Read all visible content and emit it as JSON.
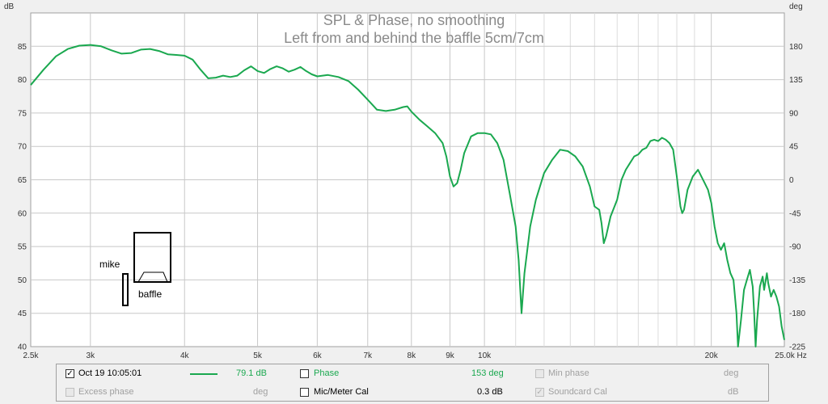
{
  "chart_data": {
    "type": "line",
    "title": "SPL & Phase, no smoothing",
    "subtitle": "Left from and behind the baffle 5cm/7cm",
    "ylabel": "dB",
    "ylabel_right": "deg",
    "xscale": "log",
    "xlim": [
      2500,
      25000
    ],
    "ylim": [
      40,
      90
    ],
    "ylim_right": [
      -225,
      225
    ],
    "x_ticks": [
      {
        "v": 2500,
        "label": "2.5k"
      },
      {
        "v": 3000,
        "label": "3k"
      },
      {
        "v": 4000,
        "label": "4k"
      },
      {
        "v": 5000,
        "label": "5k"
      },
      {
        "v": 6000,
        "label": "6k"
      },
      {
        "v": 7000,
        "label": "7k"
      },
      {
        "v": 8000,
        "label": "8k"
      },
      {
        "v": 9000,
        "label": "9k"
      },
      {
        "v": 10000,
        "label": "10k"
      },
      {
        "v": 20000,
        "label": "20k"
      },
      {
        "v": 25000,
        "label": "25.0k Hz"
      }
    ],
    "x_minor_gridlines": [
      11000,
      12000,
      13000,
      14000,
      15000,
      16000,
      17000,
      18000,
      19000
    ],
    "y_ticks": [
      40,
      45,
      50,
      55,
      60,
      65,
      70,
      75,
      80,
      85
    ],
    "y_ticks_right": [
      -225,
      -180,
      -135,
      -90,
      -45,
      0,
      45,
      90,
      135,
      180
    ],
    "grid": true,
    "series": [
      {
        "color": "#1aa84f",
        "points": [
          [
            2500,
            79.2
          ],
          [
            2600,
            81.5
          ],
          [
            2700,
            83.5
          ],
          [
            2800,
            84.6
          ],
          [
            2900,
            85.1
          ],
          [
            3000,
            85.2
          ],
          [
            3100,
            85.0
          ],
          [
            3200,
            84.4
          ],
          [
            3300,
            83.9
          ],
          [
            3400,
            84.0
          ],
          [
            3500,
            84.5
          ],
          [
            3600,
            84.6
          ],
          [
            3700,
            84.3
          ],
          [
            3800,
            83.8
          ],
          [
            3900,
            83.7
          ],
          [
            4000,
            83.6
          ],
          [
            4100,
            83.0
          ],
          [
            4200,
            81.5
          ],
          [
            4300,
            80.2
          ],
          [
            4400,
            80.3
          ],
          [
            4500,
            80.6
          ],
          [
            4600,
            80.4
          ],
          [
            4700,
            80.6
          ],
          [
            4800,
            81.4
          ],
          [
            4900,
            82.0
          ],
          [
            5000,
            81.3
          ],
          [
            5100,
            81.0
          ],
          [
            5200,
            81.6
          ],
          [
            5300,
            82.0
          ],
          [
            5400,
            81.7
          ],
          [
            5500,
            81.2
          ],
          [
            5600,
            81.5
          ],
          [
            5700,
            81.9
          ],
          [
            5800,
            81.3
          ],
          [
            5900,
            80.8
          ],
          [
            6000,
            80.5
          ],
          [
            6200,
            80.7
          ],
          [
            6400,
            80.4
          ],
          [
            6600,
            79.8
          ],
          [
            6800,
            78.5
          ],
          [
            7000,
            77.0
          ],
          [
            7200,
            75.5
          ],
          [
            7400,
            75.3
          ],
          [
            7600,
            75.5
          ],
          [
            7800,
            75.9
          ],
          [
            7900,
            76.0
          ],
          [
            8000,
            75.2
          ],
          [
            8200,
            74.0
          ],
          [
            8400,
            73.0
          ],
          [
            8600,
            72.0
          ],
          [
            8800,
            70.5
          ],
          [
            8900,
            68.5
          ],
          [
            9000,
            65.5
          ],
          [
            9100,
            64.0
          ],
          [
            9200,
            64.5
          ],
          [
            9300,
            66.5
          ],
          [
            9400,
            69.0
          ],
          [
            9600,
            71.5
          ],
          [
            9800,
            72.0
          ],
          [
            10000,
            72.0
          ],
          [
            10200,
            71.8
          ],
          [
            10400,
            70.5
          ],
          [
            10600,
            68.0
          ],
          [
            10800,
            63.0
          ],
          [
            11000,
            58.0
          ],
          [
            11100,
            53.0
          ],
          [
            11200,
            45.0
          ],
          [
            11300,
            51.0
          ],
          [
            11500,
            58.0
          ],
          [
            11700,
            62.0
          ],
          [
            12000,
            66.0
          ],
          [
            12300,
            68.0
          ],
          [
            12600,
            69.5
          ],
          [
            12900,
            69.3
          ],
          [
            13200,
            68.5
          ],
          [
            13500,
            67.0
          ],
          [
            13800,
            64.0
          ],
          [
            14000,
            61.0
          ],
          [
            14200,
            60.5
          ],
          [
            14300,
            58.5
          ],
          [
            14400,
            55.5
          ],
          [
            14500,
            56.5
          ],
          [
            14700,
            59.5
          ],
          [
            15000,
            62.0
          ],
          [
            15200,
            65.0
          ],
          [
            15400,
            66.5
          ],
          [
            15600,
            67.5
          ],
          [
            15800,
            68.5
          ],
          [
            16000,
            68.8
          ],
          [
            16200,
            69.5
          ],
          [
            16400,
            69.8
          ],
          [
            16600,
            70.8
          ],
          [
            16800,
            71.0
          ],
          [
            17000,
            70.8
          ],
          [
            17200,
            71.3
          ],
          [
            17400,
            71.0
          ],
          [
            17600,
            70.5
          ],
          [
            17800,
            69.5
          ],
          [
            18000,
            65.5
          ],
          [
            18200,
            61.0
          ],
          [
            18300,
            60.0
          ],
          [
            18400,
            60.5
          ],
          [
            18600,
            63.5
          ],
          [
            18900,
            65.5
          ],
          [
            19200,
            66.5
          ],
          [
            19400,
            65.5
          ],
          [
            19600,
            64.5
          ],
          [
            19800,
            63.5
          ],
          [
            20000,
            61.5
          ],
          [
            20200,
            58.0
          ],
          [
            20400,
            55.5
          ],
          [
            20600,
            54.5
          ],
          [
            20800,
            55.5
          ],
          [
            21000,
            53.0
          ],
          [
            21200,
            51.0
          ],
          [
            21400,
            50.0
          ],
          [
            21600,
            45.0
          ],
          [
            21700,
            40.0
          ],
          [
            21900,
            44.0
          ],
          [
            22100,
            48.5
          ],
          [
            22300,
            50.0
          ],
          [
            22500,
            51.5
          ],
          [
            22700,
            49.0
          ],
          [
            22800,
            45.0
          ],
          [
            22900,
            40.0
          ],
          [
            23000,
            44.0
          ],
          [
            23200,
            49.0
          ],
          [
            23400,
            50.5
          ],
          [
            23500,
            48.5
          ],
          [
            23700,
            51.0
          ],
          [
            23800,
            49.5
          ],
          [
            24000,
            47.5
          ],
          [
            24200,
            48.5
          ],
          [
            24400,
            47.5
          ],
          [
            24600,
            46.0
          ],
          [
            24800,
            43.0
          ],
          [
            25000,
            41.0
          ]
        ]
      }
    ]
  },
  "annotations": {
    "mike": "mike",
    "baffle": "baffle"
  },
  "legend": {
    "row1": {
      "date_label": "Oct 19 10:05:01",
      "spl_value": "79.1 dB",
      "phase_label": "Phase",
      "phase_value": "153 deg",
      "min_phase_label": "Min phase",
      "min_phase_unit": "deg"
    },
    "row2": {
      "excess_phase_label": "Excess phase",
      "excess_phase_unit": "deg",
      "mic_cal_label": "Mic/Meter Cal",
      "mic_cal_value": "0.3 dB",
      "soundcard_cal_label": "Soundcard Cal",
      "soundcard_cal_unit": "dB"
    },
    "check_mark": "✓",
    "colors": {
      "spl": "#1aa84f"
    }
  }
}
